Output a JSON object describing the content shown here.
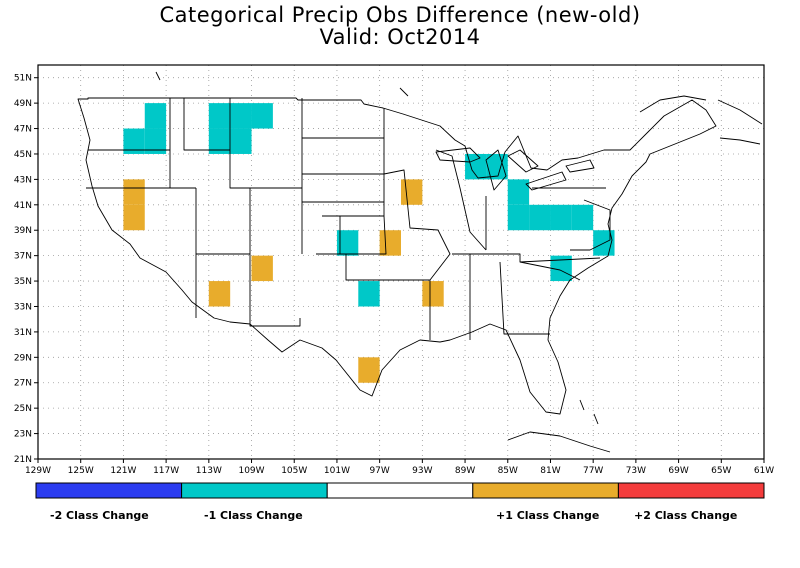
{
  "title": {
    "line1": "Categorical Precip Obs Difference (new-old)",
    "line2": "Valid: Oct2014"
  },
  "map": {
    "lon_range": [
      -129,
      -61
    ],
    "lat_range": [
      21,
      52
    ],
    "grid": true,
    "lat_ticks": [
      "21N",
      "23N",
      "25N",
      "27N",
      "29N",
      "31N",
      "33N",
      "35N",
      "37N",
      "39N",
      "41N",
      "43N",
      "45N",
      "47N",
      "49N",
      "51N"
    ],
    "lon_ticks": [
      "129W",
      "125W",
      "121W",
      "117W",
      "113W",
      "109W",
      "105W",
      "101W",
      "97W",
      "93W",
      "89W",
      "85W",
      "81W",
      "77W",
      "73W",
      "69W",
      "65W",
      "61W"
    ],
    "colors": {
      "minus2": "#2b3cf0",
      "minus1": "#00c8c8",
      "zero": "#ffffff",
      "plus1": "#e8ac2c",
      "plus2": "#f43c3c"
    },
    "cells": [
      {
        "lon": -121,
        "lat": 45,
        "value": -1
      },
      {
        "lon": -119,
        "lat": 45,
        "value": -1
      },
      {
        "lon": -119,
        "lat": 47,
        "value": -1
      },
      {
        "lon": -113,
        "lat": 45,
        "value": -1
      },
      {
        "lon": -111,
        "lat": 45,
        "value": -1
      },
      {
        "lon": -113,
        "lat": 47,
        "value": -1
      },
      {
        "lon": -111,
        "lat": 47,
        "value": -1
      },
      {
        "lon": -109,
        "lat": 47,
        "value": -1
      },
      {
        "lon": -121,
        "lat": 39,
        "value": 1
      },
      {
        "lon": -121,
        "lat": 41,
        "value": 1
      },
      {
        "lon": -113,
        "lat": 33,
        "value": 1
      },
      {
        "lon": -109,
        "lat": 35,
        "value": 1
      },
      {
        "lon": -101,
        "lat": 37,
        "value": -1
      },
      {
        "lon": -97,
        "lat": 37,
        "value": 1
      },
      {
        "lon": -99,
        "lat": 33,
        "value": -1
      },
      {
        "lon": -93,
        "lat": 33,
        "value": 1
      },
      {
        "lon": -99,
        "lat": 27,
        "value": 1
      },
      {
        "lon": -95,
        "lat": 41,
        "value": 1
      },
      {
        "lon": -89,
        "lat": 43,
        "value": -1
      },
      {
        "lon": -87,
        "lat": 43,
        "value": -1
      },
      {
        "lon": -85,
        "lat": 39,
        "value": -1
      },
      {
        "lon": -85,
        "lat": 41,
        "value": -1
      },
      {
        "lon": -83,
        "lat": 39,
        "value": -1
      },
      {
        "lon": -81,
        "lat": 39,
        "value": -1
      },
      {
        "lon": -79,
        "lat": 39,
        "value": -1
      },
      {
        "lon": -77,
        "lat": 37,
        "value": -1
      },
      {
        "lon": -81,
        "lat": 35,
        "value": -1
      }
    ]
  },
  "legend": {
    "labels": [
      "-2 Class Change",
      "-1 Class Change",
      "+1 Class Change",
      "+2 Class Change"
    ]
  }
}
